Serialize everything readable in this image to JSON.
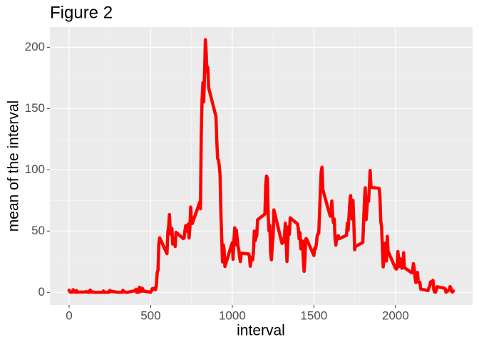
{
  "chart_data": {
    "type": "line",
    "title": "Figure 2",
    "x_label": "interval",
    "y_label": "mean of the interval",
    "xlim": [
      -117.75,
      2472.75
    ],
    "ylim": [
      -10.31,
      216.48
    ],
    "xticks": [
      0,
      500,
      1000,
      1500,
      2000
    ],
    "yticks": [
      0,
      50,
      100,
      150,
      200
    ],
    "grid": true,
    "x": [
      0,
      5,
      10,
      15,
      20,
      25,
      30,
      35,
      40,
      45,
      50,
      55,
      100,
      105,
      110,
      115,
      120,
      125,
      130,
      135,
      140,
      145,
      150,
      155,
      200,
      205,
      210,
      215,
      220,
      225,
      230,
      235,
      240,
      245,
      250,
      255,
      300,
      305,
      310,
      315,
      320,
      325,
      330,
      335,
      340,
      345,
      350,
      355,
      400,
      405,
      410,
      415,
      420,
      425,
      430,
      435,
      440,
      445,
      450,
      455,
      500,
      505,
      510,
      515,
      520,
      525,
      530,
      535,
      540,
      545,
      550,
      555,
      600,
      605,
      610,
      615,
      620,
      625,
      630,
      635,
      640,
      645,
      650,
      655,
      700,
      705,
      710,
      715,
      720,
      725,
      730,
      735,
      740,
      745,
      750,
      755,
      800,
      805,
      810,
      815,
      820,
      825,
      830,
      835,
      840,
      845,
      850,
      855,
      900,
      905,
      910,
      915,
      920,
      925,
      930,
      935,
      940,
      945,
      950,
      955,
      1000,
      1005,
      1010,
      1015,
      1020,
      1025,
      1030,
      1035,
      1040,
      1045,
      1050,
      1055,
      1100,
      1105,
      1110,
      1115,
      1120,
      1125,
      1130,
      1135,
      1140,
      1145,
      1150,
      1155,
      1200,
      1205,
      1210,
      1215,
      1220,
      1225,
      1230,
      1235,
      1240,
      1245,
      1250,
      1255,
      1300,
      1305,
      1310,
      1315,
      1320,
      1325,
      1330,
      1335,
      1340,
      1345,
      1350,
      1355,
      1400,
      1405,
      1410,
      1415,
      1420,
      1425,
      1430,
      1435,
      1440,
      1445,
      1450,
      1455,
      1500,
      1505,
      1510,
      1515,
      1520,
      1525,
      1530,
      1535,
      1540,
      1545,
      1550,
      1555,
      1600,
      1605,
      1610,
      1615,
      1620,
      1625,
      1630,
      1635,
      1640,
      1645,
      1650,
      1655,
      1700,
      1705,
      1710,
      1715,
      1720,
      1725,
      1730,
      1735,
      1740,
      1745,
      1750,
      1755,
      1800,
      1805,
      1810,
      1815,
      1820,
      1825,
      1830,
      1835,
      1840,
      1845,
      1850,
      1855,
      1900,
      1905,
      1910,
      1915,
      1920,
      1925,
      1930,
      1935,
      1940,
      1945,
      1950,
      1955,
      2000,
      2005,
      2010,
      2015,
      2020,
      2025,
      2030,
      2035,
      2040,
      2045,
      2050,
      2055,
      2100,
      2105,
      2110,
      2115,
      2120,
      2125,
      2130,
      2135,
      2140,
      2145,
      2150,
      2155,
      2200,
      2205,
      2210,
      2215,
      2220,
      2225,
      2230,
      2235,
      2240,
      2245,
      2250,
      2255,
      2300,
      2305,
      2310,
      2315,
      2320,
      2325,
      2330,
      2335,
      2340,
      2345,
      2350,
      2355
    ],
    "series": [
      {
        "name": "mean",
        "color": "#ff0000",
        "values": [
          1.72,
          0.34,
          0.13,
          0.15,
          0.08,
          2.09,
          0.53,
          0.87,
          0,
          1.47,
          0.3,
          0.13,
          0.32,
          0.68,
          0.15,
          0.34,
          0,
          1.11,
          1.83,
          0.17,
          0.17,
          0.38,
          0.26,
          0,
          0,
          0,
          1.13,
          0,
          0,
          0.13,
          0,
          0.23,
          0,
          0,
          1.55,
          0.94,
          0,
          0,
          0,
          0,
          0.21,
          0,
          1.62,
          0.58,
          0.49,
          0.08,
          0,
          0,
          1.19,
          0.94,
          2.57,
          0,
          0.34,
          0,
          4.11,
          0.66,
          3.49,
          0.83,
          3.11,
          1.11,
          0,
          1.57,
          3,
          2.25,
          3.32,
          2.96,
          2.09,
          6.06,
          16.02,
          18.34,
          39.45,
          44.49,
          31.49,
          49.26,
          53.77,
          63.45,
          49.96,
          47.08,
          52.15,
          39.34,
          44.02,
          44.17,
          37.36,
          49.04,
          43.81,
          44.38,
          50.51,
          54.51,
          49.92,
          50.98,
          55.68,
          44.32,
          52.26,
          69.55,
          57.85,
          56.15,
          73.38,
          68.21,
          129.43,
          157.53,
          171.15,
          155.4,
          177.3,
          206.17,
          195.92,
          179.57,
          183.4,
          167.02,
          143.45,
          124.04,
          109.11,
          108.11,
          103.72,
          95.96,
          66.21,
          45.23,
          24.79,
          38.75,
          34.98,
          21.06,
          40.57,
          26.98,
          42.42,
          52.66,
          38.92,
          50.79,
          44.28,
          37.42,
          34.69,
          28.34,
          25.09,
          31.94,
          31.36,
          29.68,
          21.32,
          25.55,
          28.38,
          26.47,
          33.43,
          49.98,
          42.04,
          44.6,
          46.04,
          59.19,
          63.87,
          87.7,
          94.85,
          92.77,
          63.4,
          50.17,
          54.47,
          32.42,
          26.53,
          37.74,
          45.06,
          67.28,
          42.34,
          39.89,
          43.26,
          40.98,
          46.25,
          56.43,
          42.75,
          25.13,
          39.96,
          53.55,
          47.32,
          60.81,
          55.75,
          51.96,
          43.58,
          48.7,
          35.47,
          37.55,
          41.85,
          27.51,
          17.11,
          26.08,
          43.62,
          43.77,
          30.02,
          36.07,
          35.49,
          38.85,
          45.96,
          47.75,
          48.13,
          65.32,
          82.91,
          98.66,
          102.11,
          83.96,
          62.13,
          64.13,
          74.55,
          63.17,
          56.91,
          59.77,
          43.87,
          38.57,
          44.66,
          45.45,
          46.21,
          43.68,
          46.62,
          56.3,
          50.72,
          61.23,
          72.72,
          78.94,
          68.94,
          59.66,
          75.09,
          56.51,
          34.77,
          37.45,
          40.68,
          58.02,
          74.7,
          85.32,
          59.26,
          67.77,
          77.7,
          74.25,
          85.34,
          99.45,
          86.58,
          85.6,
          84.87,
          77.83,
          58.04,
          53.36,
          36.33,
          20.72,
          27.4,
          40.02,
          30.21,
          25.55,
          45.66,
          33.53,
          19.62,
          19.02,
          19.34,
          33.34,
          26.81,
          21.17,
          27.3,
          21.34,
          19.55,
          21.32,
          32.3,
          20.15,
          15.94,
          17.23,
          23.45,
          19.25,
          12.45,
          8.02,
          14.66,
          16.3,
          8.68,
          7.79,
          8.13,
          2.62,
          1.45,
          3.68,
          4.81,
          8.51,
          7.08,
          8.7,
          9.75,
          2.21,
          0.32,
          0.11,
          1.6,
          4.6,
          3.3,
          2.85,
          0,
          0.83,
          0.96,
          1.58,
          2.6,
          4.7,
          3.3,
          0.64,
          0.23,
          1.08
        ]
      }
    ]
  }
}
